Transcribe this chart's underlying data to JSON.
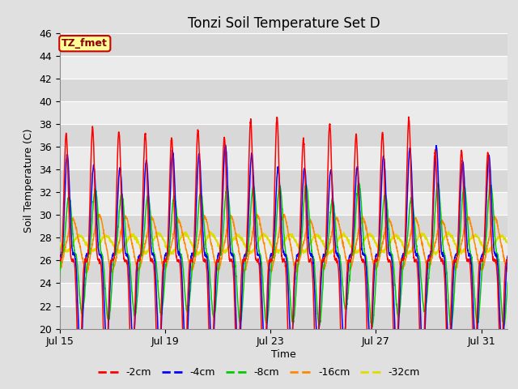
{
  "title": "Tonzi Soil Temperature Set D",
  "ylabel": "Soil Temperature (C)",
  "xlabel": "Time",
  "ylim": [
    20,
    46
  ],
  "xtick_labels": [
    "Jul 15",
    "Jul 19",
    "Jul 23",
    "Jul 27",
    "Jul 31"
  ],
  "xtick_days": [
    0,
    4,
    8,
    12,
    16
  ],
  "duration_days": 17,
  "samples_per_day": 144,
  "series": {
    "-2cm": {
      "color": "#ff0000",
      "amplitude": 11.0,
      "mean": 26.0,
      "lag_hours": 0.0,
      "sharpness": 4.0
    },
    "-4cm": {
      "color": "#0000ff",
      "amplitude": 8.5,
      "mean": 26.5,
      "lag_hours": 1.0,
      "sharpness": 3.0
    },
    "-8cm": {
      "color": "#00cc00",
      "amplitude": 5.5,
      "mean": 26.5,
      "lag_hours": 2.5,
      "sharpness": 2.0
    },
    "-16cm": {
      "color": "#ff8800",
      "amplitude": 2.3,
      "mean": 27.5,
      "lag_hours": 6.0,
      "sharpness": 1.2
    },
    "-32cm": {
      "color": "#dddd00",
      "amplitude": 0.75,
      "mean": 27.5,
      "lag_hours": 12.0,
      "sharpness": 1.0
    }
  },
  "annotation_label": "TZ_fmet",
  "annotation_bg": "#ffff99",
  "annotation_border": "#cc0000",
  "bg_color": "#e0e0e0",
  "plot_bg_light": "#ebebeb",
  "plot_bg_dark": "#d8d8d8",
  "grid_color": "#ffffff",
  "title_fontsize": 12,
  "axis_label_fontsize": 9,
  "tick_fontsize": 9,
  "legend_fontsize": 9
}
